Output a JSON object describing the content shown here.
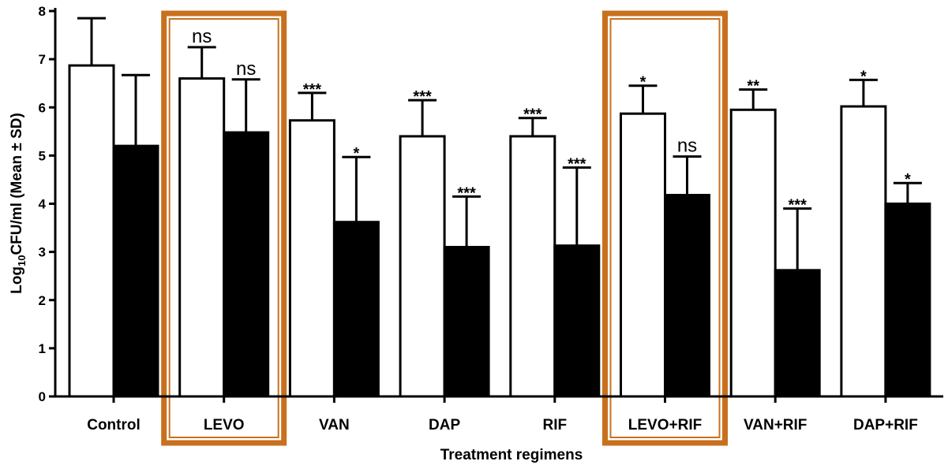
{
  "chart_data": {
    "type": "bar",
    "title": "",
    "xlabel": "Treatment regimens",
    "ylabel_parts": [
      "Log",
      "10",
      "CFU/ml (Mean ± SD)"
    ],
    "ylim": [
      0,
      8
    ],
    "yticks": [
      "0",
      "1",
      "2",
      "3",
      "4",
      "5",
      "6",
      "7",
      "8"
    ],
    "categories": [
      "Control",
      "LEVO",
      "VAN",
      "DAP",
      "RIF",
      "LEVO+RIF",
      "VAN+RIF",
      "DAP+RIF"
    ],
    "series": [
      {
        "fill": "#ffffff",
        "values": [
          6.87,
          6.6,
          5.73,
          5.4,
          5.4,
          5.87,
          5.95,
          6.02
        ],
        "errors": [
          0.98,
          0.65,
          0.57,
          0.75,
          0.38,
          0.58,
          0.42,
          0.55
        ],
        "labels": [
          "",
          "ns",
          "***",
          "***",
          "***",
          "*",
          "**",
          "*"
        ]
      },
      {
        "fill": "#000000",
        "values": [
          5.2,
          5.48,
          3.62,
          3.1,
          3.13,
          4.18,
          2.62,
          4.0
        ],
        "errors": [
          1.47,
          1.1,
          1.35,
          1.05,
          1.62,
          0.8,
          1.28,
          0.43
        ],
        "labels": [
          "",
          "ns",
          "*",
          "***",
          "***",
          "ns",
          "***",
          "*"
        ]
      }
    ],
    "highlighted_categories": [
      "LEVO",
      "LEVO+RIF"
    ],
    "highlight_color": "#c8701e",
    "grid": false,
    "legend": "none"
  }
}
